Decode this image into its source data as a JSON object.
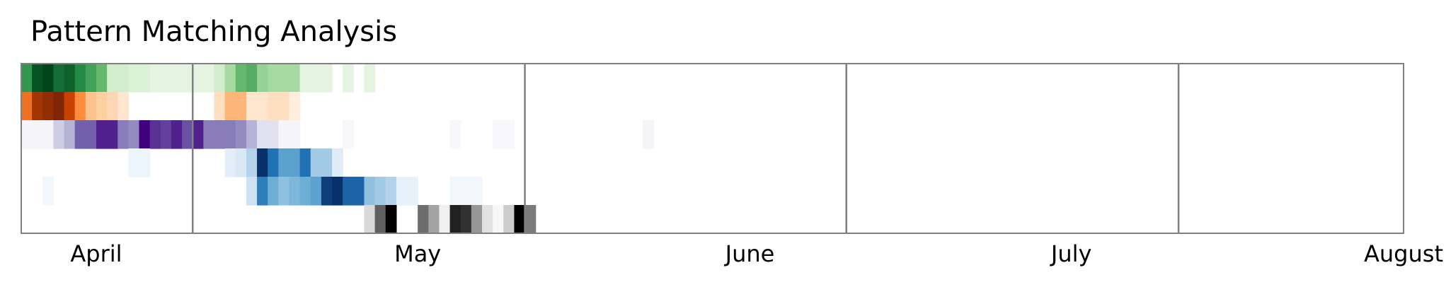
{
  "chart_data": {
    "type": "heatmap",
    "title": "Pattern Matching Analysis",
    "xlabel": "",
    "ylabel": "",
    "x_axis": {
      "start": "2024-03-25",
      "end": "2024-08-01",
      "unit": "day"
    },
    "month_ticks": [
      {
        "label": "April",
        "date": "2024-04-01"
      },
      {
        "label": "May",
        "date": "2024-05-01"
      },
      {
        "label": "June",
        "date": "2024-06-01"
      },
      {
        "label": "July",
        "date": "2024-07-01"
      },
      {
        "label": "August",
        "date": "2024-08-01"
      }
    ],
    "month_separators": [
      "2024-04-10",
      "2024-05-11",
      "2024-06-10",
      "2024-07-11"
    ],
    "grid": false,
    "legend": "none",
    "rows": [
      {
        "colormap": "Greens",
        "colors": [
          "#f7fcf5",
          "#c7e9c0",
          "#74c476",
          "#238b45",
          "#00441b"
        ],
        "cells": [
          {
            "date": "2024-03-25",
            "value": 0.7
          },
          {
            "date": "2024-03-26",
            "value": 0.95
          },
          {
            "date": "2024-03-27",
            "value": 1.0
          },
          {
            "date": "2024-03-28",
            "value": 0.85
          },
          {
            "date": "2024-03-29",
            "value": 0.9
          },
          {
            "date": "2024-03-30",
            "value": 0.75
          },
          {
            "date": "2024-03-31",
            "value": 0.65
          },
          {
            "date": "2024-04-01",
            "value": 0.55
          },
          {
            "date": "2024-04-02",
            "value": 0.2
          },
          {
            "date": "2024-04-03",
            "value": 0.2
          },
          {
            "date": "2024-04-04",
            "value": 0.15
          },
          {
            "date": "2024-04-05",
            "value": 0.15
          },
          {
            "date": "2024-04-06",
            "value": 0.1
          },
          {
            "date": "2024-04-07",
            "value": 0.1
          },
          {
            "date": "2024-04-08",
            "value": 0.1
          },
          {
            "date": "2024-04-09",
            "value": 0.1
          },
          {
            "date": "2024-04-10",
            "value": 0.1
          },
          {
            "date": "2024-04-11",
            "value": 0.1
          },
          {
            "date": "2024-04-12",
            "value": 0.2
          },
          {
            "date": "2024-04-13",
            "value": 0.35
          },
          {
            "date": "2024-04-14",
            "value": 0.55
          },
          {
            "date": "2024-04-15",
            "value": 0.6
          },
          {
            "date": "2024-04-16",
            "value": 0.4
          },
          {
            "date": "2024-04-17",
            "value": 0.35
          },
          {
            "date": "2024-04-18",
            "value": 0.35
          },
          {
            "date": "2024-04-19",
            "value": 0.35
          },
          {
            "date": "2024-04-20",
            "value": 0.1
          },
          {
            "date": "2024-04-21",
            "value": 0.1
          },
          {
            "date": "2024-04-22",
            "value": 0.1
          },
          {
            "date": "2024-04-24",
            "value": 0.1
          },
          {
            "date": "2024-04-26",
            "value": 0.1
          }
        ]
      },
      {
        "colormap": "Oranges",
        "colors": [
          "#fff5eb",
          "#fdd0a2",
          "#fd8d3c",
          "#d94801",
          "#7f2704"
        ],
        "cells": [
          {
            "date": "2024-03-25",
            "value": 0.6
          },
          {
            "date": "2024-03-26",
            "value": 0.9
          },
          {
            "date": "2024-03-27",
            "value": 0.95
          },
          {
            "date": "2024-03-28",
            "value": 1.0
          },
          {
            "date": "2024-03-29",
            "value": 0.8
          },
          {
            "date": "2024-03-30",
            "value": 0.5
          },
          {
            "date": "2024-03-31",
            "value": 0.3
          },
          {
            "date": "2024-04-01",
            "value": 0.25
          },
          {
            "date": "2024-04-02",
            "value": 0.2
          },
          {
            "date": "2024-04-03",
            "value": 0.1
          },
          {
            "date": "2024-04-12",
            "value": 0.15
          },
          {
            "date": "2024-04-13",
            "value": 0.35
          },
          {
            "date": "2024-04-14",
            "value": 0.35
          },
          {
            "date": "2024-04-15",
            "value": 0.1
          },
          {
            "date": "2024-04-16",
            "value": 0.1
          },
          {
            "date": "2024-04-17",
            "value": 0.15
          },
          {
            "date": "2024-04-18",
            "value": 0.15
          },
          {
            "date": "2024-04-19",
            "value": 0.05
          }
        ]
      },
      {
        "colormap": "Purples",
        "colors": [
          "#fcfbfd",
          "#dadaeb",
          "#9e9ac8",
          "#6a51a3",
          "#3f007d"
        ],
        "cells": [
          {
            "date": "2024-03-25",
            "value": 0.05
          },
          {
            "date": "2024-03-26",
            "value": 0.05
          },
          {
            "date": "2024-03-27",
            "value": 0.05
          },
          {
            "date": "2024-03-28",
            "value": 0.3
          },
          {
            "date": "2024-03-29",
            "value": 0.4
          },
          {
            "date": "2024-03-30",
            "value": 0.7
          },
          {
            "date": "2024-03-31",
            "value": 0.7
          },
          {
            "date": "2024-04-01",
            "value": 0.9
          },
          {
            "date": "2024-04-02",
            "value": 0.9
          },
          {
            "date": "2024-04-03",
            "value": 0.6
          },
          {
            "date": "2024-04-04",
            "value": 0.55
          },
          {
            "date": "2024-04-05",
            "value": 1.0
          },
          {
            "date": "2024-04-06",
            "value": 0.85
          },
          {
            "date": "2024-04-07",
            "value": 0.8
          },
          {
            "date": "2024-04-08",
            "value": 0.9
          },
          {
            "date": "2024-04-09",
            "value": 0.75
          },
          {
            "date": "2024-04-10",
            "value": 0.9
          },
          {
            "date": "2024-04-11",
            "value": 0.6
          },
          {
            "date": "2024-04-12",
            "value": 0.6
          },
          {
            "date": "2024-04-13",
            "value": 0.6
          },
          {
            "date": "2024-04-14",
            "value": 0.55
          },
          {
            "date": "2024-04-15",
            "value": 0.4
          },
          {
            "date": "2024-04-16",
            "value": 0.2
          },
          {
            "date": "2024-04-17",
            "value": 0.2
          },
          {
            "date": "2024-04-18",
            "value": 0.05
          },
          {
            "date": "2024-04-19",
            "value": 0.05
          },
          {
            "date": "2024-04-24",
            "value": 0.03
          },
          {
            "date": "2024-05-04",
            "value": 0.03
          },
          {
            "date": "2024-05-08",
            "value": 0.03
          },
          {
            "date": "2024-05-09",
            "value": 0.03
          },
          {
            "date": "2024-05-22",
            "value": 0.05
          }
        ]
      },
      {
        "colormap": "Blues",
        "colors": [
          "#f7fbff",
          "#c6dbef",
          "#6baed6",
          "#2171b5",
          "#08306b"
        ],
        "cells": [
          {
            "date": "2024-04-04",
            "value": 0.05
          },
          {
            "date": "2024-04-05",
            "value": 0.05
          },
          {
            "date": "2024-04-13",
            "value": 0.1
          },
          {
            "date": "2024-04-14",
            "value": 0.15
          },
          {
            "date": "2024-04-15",
            "value": 0.3
          },
          {
            "date": "2024-04-16",
            "value": 1.0
          },
          {
            "date": "2024-04-17",
            "value": 0.75
          },
          {
            "date": "2024-04-18",
            "value": 0.55
          },
          {
            "date": "2024-04-19",
            "value": 0.55
          },
          {
            "date": "2024-04-20",
            "value": 0.75
          },
          {
            "date": "2024-04-21",
            "value": 0.35
          },
          {
            "date": "2024-04-22",
            "value": 0.35
          },
          {
            "date": "2024-04-23",
            "value": 0.12
          }
        ]
      },
      {
        "colormap": "Blues",
        "colors": [
          "#f7fbff",
          "#c6dbef",
          "#6baed6",
          "#2171b5",
          "#08306b"
        ],
        "cells": [
          {
            "date": "2024-03-27",
            "value": 0.03
          },
          {
            "date": "2024-04-15",
            "value": 0.2
          },
          {
            "date": "2024-04-16",
            "value": 0.7
          },
          {
            "date": "2024-04-17",
            "value": 0.5
          },
          {
            "date": "2024-04-18",
            "value": 0.4
          },
          {
            "date": "2024-04-19",
            "value": 0.45
          },
          {
            "date": "2024-04-20",
            "value": 0.5
          },
          {
            "date": "2024-04-21",
            "value": 0.55
          },
          {
            "date": "2024-04-22",
            "value": 0.95
          },
          {
            "date": "2024-04-23",
            "value": 1.0
          },
          {
            "date": "2024-04-24",
            "value": 0.8
          },
          {
            "date": "2024-04-25",
            "value": 0.8
          },
          {
            "date": "2024-04-26",
            "value": 0.4
          },
          {
            "date": "2024-04-27",
            "value": 0.35
          },
          {
            "date": "2024-04-28",
            "value": 0.3
          },
          {
            "date": "2024-04-29",
            "value": 0.08
          },
          {
            "date": "2024-04-30",
            "value": 0.08
          },
          {
            "date": "2024-05-04",
            "value": 0.03
          },
          {
            "date": "2024-05-05",
            "value": 0.03
          },
          {
            "date": "2024-05-06",
            "value": 0.03
          }
        ]
      },
      {
        "colormap": "Greys",
        "colors": [
          "#ffffff",
          "#d9d9d9",
          "#969696",
          "#525252",
          "#000000"
        ],
        "cells": [
          {
            "date": "2024-04-26",
            "value": 0.25
          },
          {
            "date": "2024-04-27",
            "value": 0.7
          },
          {
            "date": "2024-04-28",
            "value": 1.0
          },
          {
            "date": "2024-05-01",
            "value": 0.65
          },
          {
            "date": "2024-05-02",
            "value": 0.45
          },
          {
            "date": "2024-05-03",
            "value": 0.1
          },
          {
            "date": "2024-05-04",
            "value": 0.9
          },
          {
            "date": "2024-05-05",
            "value": 0.85
          },
          {
            "date": "2024-05-06",
            "value": 0.5
          },
          {
            "date": "2024-05-07",
            "value": 0.2
          },
          {
            "date": "2024-05-08",
            "value": 0.05
          },
          {
            "date": "2024-05-09",
            "value": 0.3
          },
          {
            "date": "2024-05-10",
            "value": 1.0
          },
          {
            "date": "2024-05-11",
            "value": 0.6
          }
        ]
      }
    ]
  }
}
